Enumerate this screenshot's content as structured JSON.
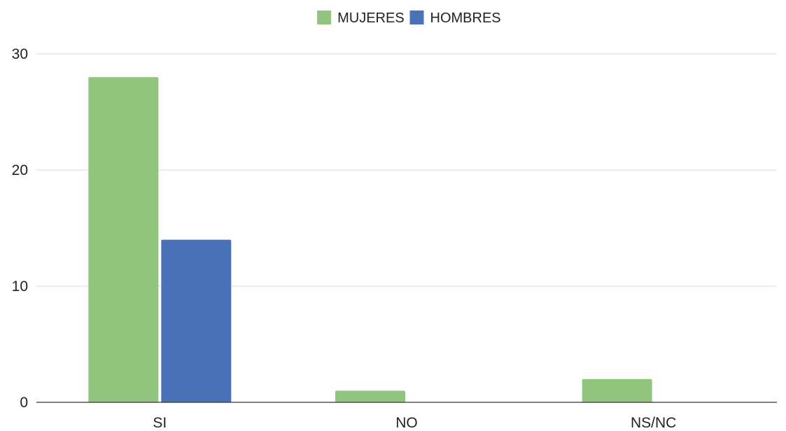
{
  "chart_data": {
    "type": "bar",
    "categories": [
      "SI",
      "NO",
      "NS/NC"
    ],
    "series": [
      {
        "name": "MUJERES",
        "values": [
          28,
          1,
          2
        ],
        "color": "#93c47d"
      },
      {
        "name": "HOMBRES",
        "values": [
          14,
          0,
          0
        ],
        "color": "#4a72b8"
      }
    ],
    "y_ticks": [
      0,
      10,
      20,
      30
    ],
    "ylim": [
      0,
      30
    ],
    "grid": true,
    "legend_position": "top-center",
    "title": "",
    "xlabel": "",
    "ylabel": ""
  }
}
